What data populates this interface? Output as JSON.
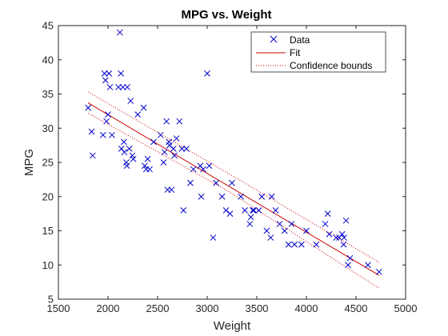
{
  "chart_data": {
    "type": "scatter",
    "title": "MPG vs. Weight",
    "xlabel": "Weight",
    "ylabel": "MPG",
    "xlim": [
      1500,
      5000
    ],
    "ylim": [
      5,
      45
    ],
    "xticks": [
      1500,
      2000,
      2500,
      3000,
      3500,
      4000,
      4500,
      5000
    ],
    "yticks": [
      5,
      10,
      15,
      20,
      25,
      30,
      35,
      40,
      45
    ],
    "grid": false,
    "legend": {
      "placement": "top-right",
      "entries": [
        "Data",
        "Fit",
        "Confidence bounds"
      ]
    },
    "colors": {
      "data": "#0000cc",
      "fit": "#cc0000",
      "bounds": "#cc0000"
    },
    "series": [
      {
        "name": "Data",
        "type": "scatter",
        "marker": "x",
        "x": [
          1800,
          1835,
          1845,
          1950,
          1965,
          1975,
          1985,
          2000,
          2010,
          2020,
          2040,
          2105,
          2120,
          2130,
          2135,
          2150,
          2160,
          2165,
          2185,
          2190,
          2195,
          2215,
          2228,
          2245,
          2255,
          2300,
          2360,
          2370,
          2385,
          2400,
          2420,
          2460,
          2530,
          2560,
          2570,
          2590,
          2600,
          2615,
          2620,
          2640,
          2660,
          2670,
          2690,
          2720,
          2745,
          2760,
          2790,
          2830,
          2860,
          2930,
          2940,
          2960,
          3000,
          3020,
          3060,
          3090,
          3150,
          3190,
          3230,
          3250,
          3340,
          3380,
          3430,
          3440,
          3460,
          3470,
          3520,
          3550,
          3600,
          3640,
          3650,
          3690,
          3730,
          3780,
          3820,
          3850,
          3880,
          3950,
          4000,
          4100,
          4190,
          4215,
          4230,
          4300,
          4330,
          4360,
          4375,
          4380,
          4400,
          4420,
          4440,
          4620,
          4732
        ],
        "y": [
          33,
          29.5,
          26,
          29,
          38,
          37,
          31,
          32,
          38,
          36,
          29,
          36,
          44,
          38,
          27,
          36,
          28,
          26.5,
          25,
          24.5,
          36,
          27,
          34,
          26,
          25.5,
          32,
          33,
          24.5,
          24,
          25.5,
          24,
          28,
          29,
          25,
          26.5,
          31,
          21,
          28,
          27.5,
          21,
          27,
          26,
          28.5,
          31,
          27,
          18,
          27,
          22,
          24,
          24.5,
          20,
          24,
          38,
          24.5,
          14,
          22,
          20,
          18,
          17.5,
          22,
          20,
          18,
          16,
          17,
          18,
          18,
          18,
          20,
          15,
          14,
          20,
          18,
          16,
          15,
          13,
          16,
          13,
          13,
          15,
          13,
          16,
          17.5,
          14.5,
          14,
          14,
          14.5,
          13,
          14,
          16.5,
          10,
          11,
          10,
          9
        ]
      },
      {
        "name": "Fit",
        "type": "line",
        "x": [
          1800,
          4732
        ],
        "y": [
          33.7,
          8.5
        ]
      },
      {
        "name": "Confidence bounds",
        "type": "line",
        "style": "dotted",
        "upper": {
          "x": [
            1800,
            3200,
            4732
          ],
          "y": [
            35.3,
            23.5,
            10.4
          ]
        },
        "lower": {
          "x": [
            1800,
            3200,
            4732
          ],
          "y": [
            32.2,
            20.9,
            6.6
          ]
        }
      }
    ]
  }
}
